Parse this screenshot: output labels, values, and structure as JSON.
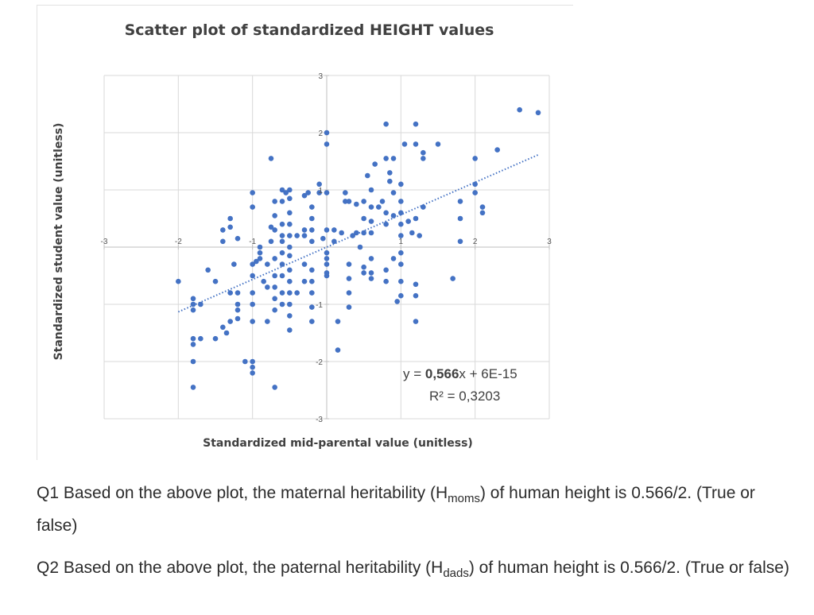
{
  "chart_data": {
    "type": "scatter",
    "title": "Scatter plot of standardized HEIGHT values",
    "xlabel": "Standardized mid-parental value (unitless)",
    "ylabel": "Standardized student value (unitless)",
    "xlim": [
      -3,
      3
    ],
    "ylim": [
      -3,
      3
    ],
    "x_ticks": [
      "-3",
      "-2",
      "-1",
      "1",
      "2",
      "3"
    ],
    "y_ticks": [
      "3",
      "2",
      "1",
      "-1",
      "-2",
      "-3"
    ],
    "grid": true,
    "marker_color": "#4472c4",
    "trendline": {
      "style": "dotted",
      "slope": 0.566,
      "intercept": 0,
      "x_range": [
        -2,
        2.85
      ],
      "equation_prefix": "y = ",
      "equation_slope": "0,566",
      "equation_suffix": "x + 6E-15",
      "r_squared": "R² = 0,3203"
    },
    "points": [
      [
        -2.0,
        -0.6
      ],
      [
        -1.8,
        -0.9
      ],
      [
        -1.8,
        -1.0
      ],
      [
        -1.8,
        -1.1
      ],
      [
        -1.8,
        -1.6
      ],
      [
        -1.8,
        -1.7
      ],
      [
        -1.7,
        -1.6
      ],
      [
        -1.7,
        -1.0
      ],
      [
        -1.6,
        -0.4
      ],
      [
        -1.5,
        -0.6
      ],
      [
        -1.5,
        -1.6
      ],
      [
        -1.4,
        -1.4
      ],
      [
        -1.35,
        -1.5
      ],
      [
        -1.3,
        -1.3
      ],
      [
        -1.8,
        -2.0
      ],
      [
        -1.8,
        -2.45
      ],
      [
        -1.4,
        0.3
      ],
      [
        -1.4,
        0.1
      ],
      [
        -1.3,
        0.5
      ],
      [
        -1.3,
        0.35
      ],
      [
        -1.3,
        -0.8
      ],
      [
        -1.25,
        -0.3
      ],
      [
        -1.2,
        0.15
      ],
      [
        -1.2,
        -0.8
      ],
      [
        -1.2,
        -1.0
      ],
      [
        -1.2,
        -1.1
      ],
      [
        -1.2,
        -1.25
      ],
      [
        -1.1,
        -2.0
      ],
      [
        -1.0,
        0.95
      ],
      [
        -1.0,
        0.7
      ],
      [
        -1.0,
        -0.3
      ],
      [
        -1.0,
        -0.5
      ],
      [
        -1.0,
        -0.8
      ],
      [
        -1.0,
        -1.0
      ],
      [
        -1.0,
        -1.3
      ],
      [
        -1.0,
        -2.0
      ],
      [
        -1.0,
        -2.1
      ],
      [
        -1.0,
        -2.2
      ],
      [
        -0.95,
        -0.25
      ],
      [
        -0.9,
        -0.2
      ],
      [
        -0.9,
        -0.1
      ],
      [
        -0.9,
        0.0
      ],
      [
        -0.85,
        -0.6
      ],
      [
        -0.8,
        -0.3
      ],
      [
        -0.8,
        -0.7
      ],
      [
        -0.8,
        -1.3
      ],
      [
        -0.75,
        1.55
      ],
      [
        -0.75,
        0.35
      ],
      [
        -0.75,
        0.1
      ],
      [
        -0.7,
        0.8
      ],
      [
        -0.7,
        0.55
      ],
      [
        -0.7,
        0.3
      ],
      [
        -0.7,
        -0.2
      ],
      [
        -0.7,
        -0.5
      ],
      [
        -0.7,
        -0.7
      ],
      [
        -0.7,
        -0.9
      ],
      [
        -0.7,
        -1.1
      ],
      [
        -0.7,
        -2.45
      ],
      [
        -0.6,
        1.0
      ],
      [
        -0.6,
        0.8
      ],
      [
        -0.6,
        0.4
      ],
      [
        -0.6,
        0.2
      ],
      [
        -0.6,
        0.1
      ],
      [
        -0.6,
        -0.1
      ],
      [
        -0.6,
        -0.3
      ],
      [
        -0.6,
        -0.5
      ],
      [
        -0.6,
        -0.8
      ],
      [
        -0.6,
        -1.0
      ],
      [
        -0.55,
        0.95
      ],
      [
        -0.5,
        1.0
      ],
      [
        -0.5,
        0.85
      ],
      [
        -0.5,
        0.6
      ],
      [
        -0.5,
        0.4
      ],
      [
        -0.5,
        0.2
      ],
      [
        -0.5,
        0.0
      ],
      [
        -0.5,
        -0.15
      ],
      [
        -0.5,
        -0.4
      ],
      [
        -0.5,
        -0.6
      ],
      [
        -0.5,
        -0.8
      ],
      [
        -0.5,
        -1.0
      ],
      [
        -0.5,
        -1.2
      ],
      [
        -0.5,
        -1.45
      ],
      [
        -0.4,
        0.2
      ],
      [
        -0.4,
        -0.8
      ],
      [
        -0.3,
        0.9
      ],
      [
        -0.3,
        0.3
      ],
      [
        -0.3,
        0.2
      ],
      [
        -0.3,
        -0.3
      ],
      [
        -0.3,
        -0.6
      ],
      [
        -0.25,
        0.95
      ],
      [
        -0.2,
        0.7
      ],
      [
        -0.2,
        0.5
      ],
      [
        -0.2,
        0.3
      ],
      [
        -0.2,
        0.1
      ],
      [
        -0.2,
        -0.4
      ],
      [
        -0.2,
        -0.6
      ],
      [
        -0.2,
        -0.8
      ],
      [
        -0.2,
        -1.05
      ],
      [
        -0.2,
        -1.3
      ],
      [
        -0.1,
        1.1
      ],
      [
        -0.1,
        0.95
      ],
      [
        -0.05,
        0.15
      ],
      [
        0.0,
        2.0
      ],
      [
        0.0,
        1.8
      ],
      [
        0.0,
        0.95
      ],
      [
        0.0,
        0.3
      ],
      [
        0.0,
        -0.1
      ],
      [
        0.0,
        -0.2
      ],
      [
        0.0,
        -0.3
      ],
      [
        0.0,
        -0.45
      ],
      [
        0.0,
        -0.5
      ],
      [
        0.1,
        0.3
      ],
      [
        0.1,
        0.1
      ],
      [
        0.15,
        -1.3
      ],
      [
        0.15,
        -1.8
      ],
      [
        0.2,
        0.25
      ],
      [
        0.25,
        0.8
      ],
      [
        0.25,
        0.95
      ],
      [
        0.3,
        0.8
      ],
      [
        0.3,
        -0.3
      ],
      [
        0.3,
        -0.55
      ],
      [
        0.3,
        -0.8
      ],
      [
        0.3,
        -1.05
      ],
      [
        0.35,
        0.2
      ],
      [
        0.4,
        0.75
      ],
      [
        0.4,
        0.25
      ],
      [
        0.45,
        0.0
      ],
      [
        0.5,
        0.8
      ],
      [
        0.5,
        0.5
      ],
      [
        0.5,
        0.25
      ],
      [
        0.5,
        -0.35
      ],
      [
        0.5,
        -0.45
      ],
      [
        0.55,
        1.25
      ],
      [
        0.6,
        1.0
      ],
      [
        0.6,
        0.7
      ],
      [
        0.6,
        0.45
      ],
      [
        0.6,
        0.25
      ],
      [
        0.6,
        -0.2
      ],
      [
        0.6,
        -0.45
      ],
      [
        0.6,
        -0.55
      ],
      [
        0.65,
        1.45
      ],
      [
        0.7,
        0.7
      ],
      [
        0.75,
        0.8
      ],
      [
        0.8,
        2.15
      ],
      [
        0.8,
        1.55
      ],
      [
        0.8,
        0.6
      ],
      [
        0.8,
        0.4
      ],
      [
        0.8,
        -0.4
      ],
      [
        0.8,
        -0.6
      ],
      [
        0.85,
        1.3
      ],
      [
        0.85,
        1.15
      ],
      [
        0.9,
        1.55
      ],
      [
        0.9,
        0.95
      ],
      [
        0.9,
        0.55
      ],
      [
        0.9,
        -0.2
      ],
      [
        0.95,
        -0.95
      ],
      [
        1.0,
        1.1
      ],
      [
        1.0,
        0.8
      ],
      [
        1.0,
        0.6
      ],
      [
        1.0,
        0.4
      ],
      [
        1.0,
        0.2
      ],
      [
        1.0,
        -0.1
      ],
      [
        1.0,
        -0.3
      ],
      [
        1.0,
        -0.6
      ],
      [
        1.0,
        -0.85
      ],
      [
        1.05,
        1.8
      ],
      [
        1.1,
        0.45
      ],
      [
        1.15,
        0.25
      ],
      [
        1.2,
        2.15
      ],
      [
        1.2,
        1.8
      ],
      [
        1.2,
        0.5
      ],
      [
        1.2,
        -0.65
      ],
      [
        1.2,
        -0.85
      ],
      [
        1.2,
        -1.3
      ],
      [
        1.25,
        0.2
      ],
      [
        1.3,
        0.7
      ],
      [
        1.3,
        1.65
      ],
      [
        1.3,
        1.55
      ],
      [
        1.5,
        1.8
      ],
      [
        1.7,
        -0.55
      ],
      [
        1.8,
        0.8
      ],
      [
        1.8,
        0.5
      ],
      [
        1.8,
        0.1
      ],
      [
        2.0,
        1.55
      ],
      [
        2.0,
        1.1
      ],
      [
        2.0,
        0.95
      ],
      [
        2.1,
        0.7
      ],
      [
        2.1,
        0.6
      ],
      [
        2.3,
        1.7
      ],
      [
        2.6,
        2.4
      ],
      [
        2.85,
        2.35
      ]
    ]
  },
  "questions": {
    "q1": {
      "prefix": "Q1 Based on the above plot, the maternal heritability (H",
      "subscript": "moms",
      "suffix": ") of human height is 0.566/2. (True or false)"
    },
    "q2": {
      "prefix": "Q2 Based on the above plot, the paternal heritability (H",
      "subscript": "dads",
      "suffix": ") of human height is 0.566/2.  (True or false)"
    }
  }
}
